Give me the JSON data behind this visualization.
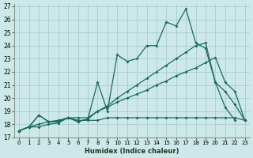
{
  "xlabel": "Humidex (Indice chaleur)",
  "background_color": "#cce8e8",
  "grid_color": "#aacccc",
  "line_color": "#1a6b5a",
  "xlim": [
    -0.5,
    23.5
  ],
  "ylim": [
    17,
    27.2
  ],
  "xticks": [
    0,
    1,
    2,
    3,
    4,
    5,
    6,
    7,
    8,
    9,
    10,
    11,
    12,
    13,
    14,
    15,
    16,
    17,
    18,
    19,
    20,
    21,
    22,
    23
  ],
  "yticks": [
    17,
    18,
    19,
    20,
    21,
    22,
    23,
    24,
    25,
    26,
    27
  ],
  "line1_x": [
    0,
    1,
    2,
    3,
    4,
    5,
    6,
    7,
    8,
    9,
    10,
    11,
    12,
    13,
    14,
    15,
    16,
    17,
    18,
    19,
    20,
    21,
    22,
    23
  ],
  "line1_y": [
    17.5,
    17.8,
    17.8,
    18.0,
    18.1,
    18.5,
    18.3,
    18.3,
    18.3,
    18.5,
    18.5,
    18.5,
    18.5,
    18.5,
    18.5,
    18.5,
    18.5,
    18.5,
    18.5,
    18.5,
    18.5,
    18.5,
    18.5,
    18.3
  ],
  "line2_x": [
    0,
    1,
    2,
    3,
    4,
    5,
    6,
    7,
    8,
    9,
    10,
    11,
    12,
    13,
    14,
    15,
    16,
    17,
    18,
    19,
    20,
    21,
    22,
    23
  ],
  "line2_y": [
    17.5,
    17.8,
    18.7,
    18.2,
    18.2,
    18.5,
    18.2,
    18.4,
    19.0,
    19.3,
    19.7,
    20.0,
    20.3,
    20.6,
    21.0,
    21.3,
    21.7,
    22.0,
    22.3,
    22.7,
    23.1,
    21.2,
    20.5,
    18.3
  ],
  "line3_x": [
    0,
    1,
    2,
    3,
    4,
    5,
    6,
    7,
    8,
    9,
    10,
    11,
    12,
    13,
    14,
    15,
    16,
    17,
    18,
    19,
    20,
    21,
    22,
    23
  ],
  "line3_y": [
    17.5,
    17.8,
    18.7,
    18.2,
    18.2,
    18.5,
    18.2,
    18.4,
    21.2,
    19.0,
    23.3,
    22.8,
    23.0,
    24.0,
    24.0,
    25.8,
    25.5,
    26.8,
    24.2,
    23.8,
    21.2,
    19.3,
    18.3,
    null
  ],
  "line4_x": [
    0,
    1,
    2,
    3,
    4,
    5,
    6,
    7,
    8,
    9,
    10,
    11,
    12,
    13,
    14,
    15,
    16,
    17,
    18,
    19,
    20,
    21,
    22,
    23
  ],
  "line4_y": [
    17.5,
    17.8,
    18.0,
    18.2,
    18.3,
    18.5,
    18.5,
    18.5,
    19.0,
    19.4,
    20.0,
    20.5,
    21.0,
    21.5,
    22.0,
    22.5,
    23.0,
    23.5,
    24.0,
    24.2,
    21.2,
    20.5,
    19.5,
    18.3
  ]
}
